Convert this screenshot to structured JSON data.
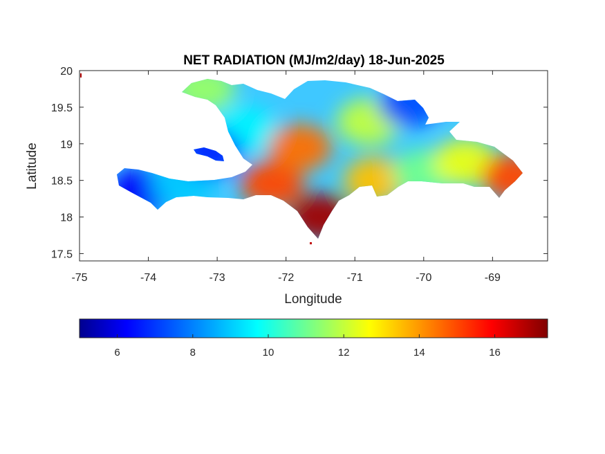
{
  "figure": {
    "title": "NET RADIATION (MJ/m2/day) 18-Jun-2025",
    "xlabel": "Longitude",
    "ylabel": "Latitude",
    "xlim": [
      -75,
      -68.2
    ],
    "ylim": [
      17.4,
      20
    ],
    "xticks": [
      -75,
      -74,
      -73,
      -72,
      -71,
      -70,
      -69
    ],
    "yticks": [
      17.5,
      18,
      18.5,
      19,
      19.5,
      20
    ],
    "xtick_labels": [
      "-75",
      "-74",
      "-73",
      "-72",
      "-71",
      "-70",
      "-69"
    ],
    "ytick_labels": [
      "17.5",
      "18",
      "18.5",
      "19",
      "19.5",
      "20"
    ]
  },
  "colorbar": {
    "colormap": "jet",
    "range": [
      5,
      17.4
    ],
    "ticks": [
      6,
      8,
      10,
      12,
      14,
      16
    ],
    "tick_labels": [
      "6",
      "8",
      "10",
      "12",
      "14",
      "16"
    ],
    "stops": [
      "#00008f",
      "#0000ff",
      "#00ffff",
      "#ffff00",
      "#ff0000",
      "#800000"
    ]
  },
  "map_data": {
    "region": "Hispaniola (Haiti and Dominican Republic)",
    "variable": "net radiation",
    "value_zones": [
      {
        "area": "Haiti southern peninsula (west)",
        "lon": -74.1,
        "lat": 18.35,
        "value": 6.5
      },
      {
        "area": "Haiti southern peninsula (central)",
        "lon": -73.5,
        "lat": 18.45,
        "value": 9.0
      },
      {
        "area": "Haiti northern peninsula",
        "lon": -73.2,
        "lat": 19.75,
        "value": 11.5
      },
      {
        "area": "Haiti central",
        "lon": -72.6,
        "lat": 19.2,
        "value": 9.5
      },
      {
        "area": "Gonave island",
        "lon": -73.1,
        "lat": 18.88,
        "value": 7.0
      },
      {
        "area": "Haiti south-east",
        "lon": -72.2,
        "lat": 18.45,
        "value": 15.0
      },
      {
        "area": "Barahona peninsula",
        "lon": -71.5,
        "lat": 18.0,
        "value": 17.0
      },
      {
        "area": "Central highlands",
        "lon": -71.8,
        "lat": 18.95,
        "value": 14.5
      },
      {
        "area": "Cibao valley",
        "lon": -70.8,
        "lat": 19.3,
        "value": 12.0
      },
      {
        "area": "North-east coast",
        "lon": -70.2,
        "lat": 19.55,
        "value": 7.5
      },
      {
        "area": "South-central DR",
        "lon": -70.7,
        "lat": 18.5,
        "value": 13.5
      },
      {
        "area": "Santo Domingo area",
        "lon": -70.0,
        "lat": 18.6,
        "value": 11.0
      },
      {
        "area": "East DR",
        "lon": -69.4,
        "lat": 18.75,
        "value": 12.5
      },
      {
        "area": "Eastern tip",
        "lon": -68.7,
        "lat": 18.55,
        "value": 15.0
      }
    ]
  }
}
